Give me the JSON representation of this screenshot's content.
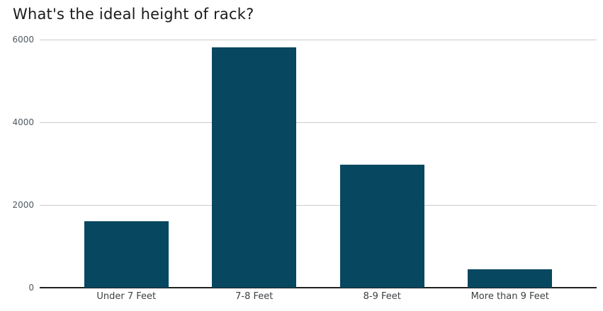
{
  "title": "What's the ideal height of rack?",
  "chart_data": {
    "type": "bar",
    "title": "What's the ideal height of rack?",
    "categories": [
      "Under 7 Feet",
      "7-8 Feet",
      "8-9 Feet",
      "More than 9 Feet"
    ],
    "values": [
      1600,
      5820,
      2970,
      445
    ],
    "xlabel": "",
    "ylabel": "",
    "ylim": [
      0,
      6000
    ],
    "yticks": [
      0,
      2000,
      4000,
      6000
    ],
    "grid": "horizontal gridlines only",
    "legend_position": "none",
    "orientation": "vertical"
  },
  "colors": {
    "background": "#ffffff",
    "bar": "#07475f",
    "gridline": "#cccccc",
    "axis_line": "#212121",
    "ytick_label": "#4d5a62",
    "xtick_label": "#3c4043",
    "title": "#1a1a1a"
  }
}
